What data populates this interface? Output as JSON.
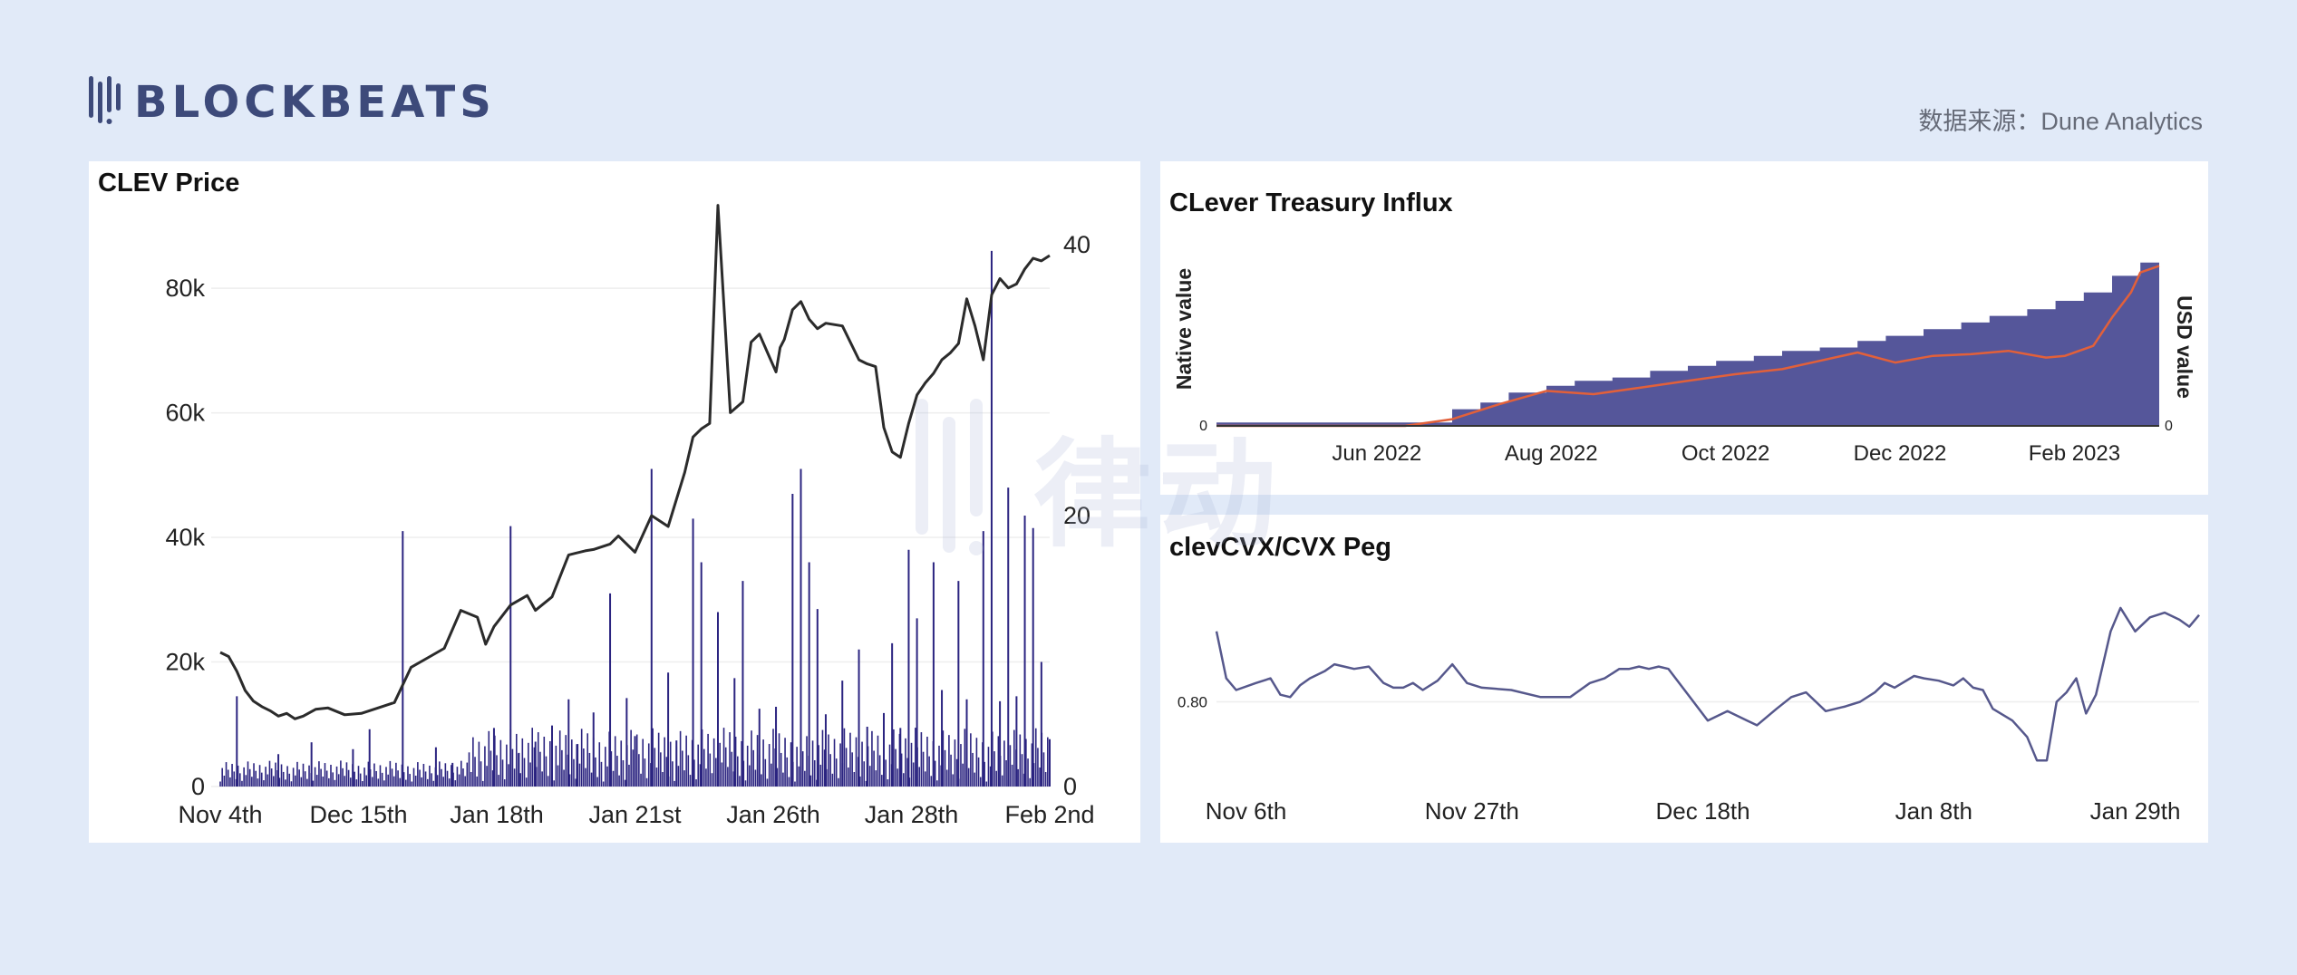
{
  "header": {
    "logo_text": "BLOCKBEATS",
    "source_label": "数据来源：Dune Analytics"
  },
  "colors": {
    "background": "#e1eaf8",
    "price_line": "#2b2b2b",
    "volume_bars": "#2b2480",
    "treasury_area": "#55569a",
    "treasury_line": "#e2603a",
    "peg_line": "#56588c",
    "logo": "#3d4a7a"
  },
  "watermark": {
    "text": "律动",
    "sub": "BLOCKBEATS"
  },
  "chart_data": [
    {
      "type": "line",
      "title": "CLEV Price",
      "x_ticks": [
        "Nov 4th",
        "Dec 15th",
        "Jan 18th",
        "Jan 21st",
        "Jan 26th",
        "Jan 28th",
        "Feb 2nd"
      ],
      "y_ticks_left": [
        "0",
        "20k",
        "40k",
        "60k",
        "80k"
      ],
      "y_ticks_right": [
        "0",
        "20",
        "40"
      ],
      "ylim_left": [
        0,
        87000
      ],
      "ylim_right": [
        0,
        40
      ],
      "series": [
        {
          "axis": "right",
          "style": "line",
          "t": [
            0,
            0.01,
            0.02,
            0.03,
            0.04,
            0.05,
            0.06,
            0.07,
            0.08,
            0.09,
            0.1,
            0.115,
            0.13,
            0.15,
            0.17,
            0.19,
            0.21,
            0.23,
            0.25,
            0.27,
            0.29,
            0.31,
            0.32,
            0.33,
            0.35,
            0.37,
            0.38,
            0.4,
            0.42,
            0.44,
            0.45,
            0.47,
            0.48,
            0.5,
            0.52,
            0.54,
            0.56,
            0.57,
            0.58,
            0.59,
            0.6,
            0.615,
            0.63,
            0.64,
            0.65,
            0.66,
            0.67,
            0.675,
            0.68,
            0.69,
            0.7,
            0.71,
            0.72,
            0.73,
            0.75,
            0.77,
            0.78,
            0.79,
            0.8,
            0.81,
            0.82,
            0.83,
            0.84,
            0.85,
            0.86,
            0.87,
            0.88,
            0.89,
            0.9,
            0.91,
            0.92,
            0.93,
            0.94,
            0.95,
            0.96,
            0.97,
            0.98,
            0.99,
            1.0
          ],
          "values": [
            9.9,
            9.6,
            8.5,
            7.1,
            6.3,
            5.9,
            5.6,
            5.2,
            5.4,
            5.0,
            5.2,
            5.7,
            5.8,
            5.3,
            5.4,
            5.8,
            6.2,
            8.8,
            9.5,
            10.2,
            13.0,
            12.5,
            10.5,
            11.8,
            13.4,
            14.1,
            13.0,
            14.0,
            17.1,
            17.4,
            17.5,
            17.9,
            18.5,
            17.3,
            20.0,
            19.2,
            23.2,
            25.8,
            26.4,
            26.8,
            42.9,
            27.6,
            28.4,
            32.8,
            33.4,
            32.0,
            30.6,
            32.4,
            33.0,
            35.2,
            35.8,
            34.5,
            33.8,
            34.2,
            34.0,
            31.5,
            31.2,
            31.0,
            26.5,
            24.7,
            24.3,
            26.8,
            28.9,
            29.8,
            30.5,
            31.5,
            32.0,
            32.7,
            36.0,
            34.0,
            31.5,
            36.3,
            37.5,
            36.8,
            37.1,
            38.2,
            39.0,
            38.8,
            39.2
          ]
        },
        {
          "axis": "left",
          "style": "bars",
          "bars": [
            [
              0.02,
              14500
            ],
            [
              0.07,
              5200
            ],
            [
              0.11,
              7100
            ],
            [
              0.16,
              6000
            ],
            [
              0.18,
              9200
            ],
            [
              0.22,
              41000
            ],
            [
              0.26,
              6300
            ],
            [
              0.28,
              3800
            ],
            [
              0.33,
              9400
            ],
            [
              0.35,
              41800
            ],
            [
              0.36,
              5400
            ],
            [
              0.38,
              7200
            ],
            [
              0.4,
              9800
            ],
            [
              0.42,
              14000
            ],
            [
              0.43,
              6800
            ],
            [
              0.45,
              11900
            ],
            [
              0.47,
              31000
            ],
            [
              0.49,
              14200
            ],
            [
              0.5,
              8100
            ],
            [
              0.52,
              51000
            ],
            [
              0.54,
              18300
            ],
            [
              0.55,
              7400
            ],
            [
              0.57,
              43000
            ],
            [
              0.58,
              36000
            ],
            [
              0.6,
              28000
            ],
            [
              0.62,
              17400
            ],
            [
              0.63,
              33000
            ],
            [
              0.65,
              12500
            ],
            [
              0.67,
              12800
            ],
            [
              0.69,
              47000
            ],
            [
              0.7,
              51000
            ],
            [
              0.71,
              36000
            ],
            [
              0.72,
              28500
            ],
            [
              0.73,
              11600
            ],
            [
              0.75,
              17000
            ],
            [
              0.77,
              22000
            ],
            [
              0.78,
              9600
            ],
            [
              0.8,
              11800
            ],
            [
              0.81,
              23000
            ],
            [
              0.82,
              9400
            ],
            [
              0.83,
              38000
            ],
            [
              0.84,
              27000
            ],
            [
              0.86,
              36000
            ],
            [
              0.87,
              15500
            ],
            [
              0.89,
              33000
            ],
            [
              0.9,
              14000
            ],
            [
              0.92,
              41000
            ],
            [
              0.93,
              86000
            ],
            [
              0.94,
              13700
            ],
            [
              0.95,
              48000
            ],
            [
              0.96,
              14500
            ],
            [
              0.97,
              43500
            ],
            [
              0.98,
              41500
            ],
            [
              0.99,
              20000
            ],
            [
              1.0,
              7600
            ]
          ]
        }
      ]
    },
    {
      "type": "area",
      "title": "CLever Treasury Influx",
      "ylabel_left": "Native value",
      "ylabel_right": "USD value",
      "x_ticks": [
        "Jun 2022",
        "Aug 2022",
        "Oct 2022",
        "Dec 2022",
        "Feb 2023"
      ],
      "y_ticks_left": [
        "0"
      ],
      "y_ticks_right": [
        "0"
      ],
      "series": [
        {
          "style": "step-area",
          "t": [
            0,
            0.25,
            0.28,
            0.31,
            0.35,
            0.38,
            0.42,
            0.46,
            0.5,
            0.53,
            0.57,
            0.6,
            0.64,
            0.68,
            0.71,
            0.75,
            0.79,
            0.82,
            0.86,
            0.89,
            0.92,
            0.95,
            0.98,
            1.0
          ],
          "values": [
            0.02,
            0.1,
            0.14,
            0.2,
            0.24,
            0.27,
            0.29,
            0.33,
            0.36,
            0.39,
            0.42,
            0.45,
            0.47,
            0.51,
            0.54,
            0.58,
            0.62,
            0.66,
            0.7,
            0.75,
            0.8,
            0.9,
            0.98,
            1.0
          ]
        },
        {
          "style": "line",
          "t": [
            0,
            0.2,
            0.25,
            0.3,
            0.35,
            0.4,
            0.45,
            0.5,
            0.55,
            0.6,
            0.64,
            0.68,
            0.72,
            0.76,
            0.8,
            0.84,
            0.88,
            0.9,
            0.93,
            0.95,
            0.97,
            0.98,
            1.0
          ],
          "values": [
            0.0,
            0.0,
            0.04,
            0.13,
            0.21,
            0.19,
            0.23,
            0.27,
            0.31,
            0.34,
            0.39,
            0.44,
            0.38,
            0.42,
            0.43,
            0.45,
            0.41,
            0.42,
            0.48,
            0.65,
            0.8,
            0.92,
            0.96
          ]
        }
      ]
    },
    {
      "type": "line",
      "title": "clevCVX/CVX Peg",
      "x_ticks": [
        "Nov 6th",
        "Nov 27th",
        "Dec 18th",
        "Jan 8th",
        "Jan 29th"
      ],
      "y_ticks": [
        "0.80"
      ],
      "series": [
        {
          "t": [
            0,
            0.01,
            0.02,
            0.04,
            0.055,
            0.065,
            0.075,
            0.085,
            0.095,
            0.11,
            0.12,
            0.13,
            0.14,
            0.155,
            0.17,
            0.18,
            0.19,
            0.2,
            0.21,
            0.225,
            0.24,
            0.255,
            0.27,
            0.3,
            0.33,
            0.36,
            0.38,
            0.395,
            0.41,
            0.42,
            0.43,
            0.44,
            0.45,
            0.46,
            0.5,
            0.52,
            0.54,
            0.55,
            0.57,
            0.585,
            0.6,
            0.62,
            0.64,
            0.655,
            0.67,
            0.68,
            0.69,
            0.71,
            0.72,
            0.735,
            0.75,
            0.76,
            0.77,
            0.78,
            0.79,
            0.81,
            0.825,
            0.835,
            0.845,
            0.855,
            0.865,
            0.875,
            0.885,
            0.895,
            0.91,
            0.92,
            0.935,
            0.95,
            0.965,
            0.98,
            0.99,
            1.0
          ],
          "values": [
            0.83,
            0.81,
            0.805,
            0.808,
            0.81,
            0.803,
            0.802,
            0.807,
            0.81,
            0.813,
            0.816,
            0.815,
            0.814,
            0.815,
            0.808,
            0.806,
            0.806,
            0.808,
            0.805,
            0.809,
            0.816,
            0.808,
            0.806,
            0.805,
            0.802,
            0.802,
            0.808,
            0.81,
            0.814,
            0.814,
            0.815,
            0.814,
            0.815,
            0.814,
            0.792,
            0.796,
            0.792,
            0.79,
            0.797,
            0.802,
            0.804,
            0.796,
            0.798,
            0.8,
            0.804,
            0.808,
            0.806,
            0.811,
            0.81,
            0.809,
            0.807,
            0.81,
            0.806,
            0.805,
            0.797,
            0.792,
            0.785,
            0.775,
            0.775,
            0.8,
            0.804,
            0.81,
            0.795,
            0.803,
            0.83,
            0.84,
            0.83,
            0.836,
            0.838,
            0.835,
            0.832,
            0.837
          ]
        }
      ]
    }
  ]
}
